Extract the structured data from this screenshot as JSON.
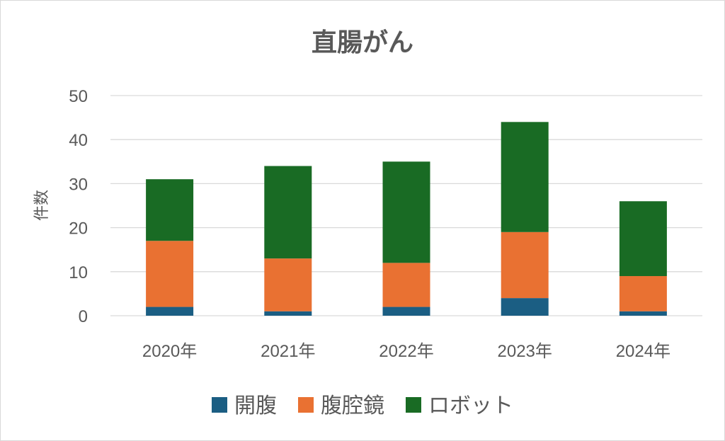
{
  "chart_data": {
    "type": "bar",
    "stacked": true,
    "title": "直腸がん",
    "xlabel": "",
    "ylabel": "件数",
    "ylim": [
      0,
      50
    ],
    "yticks": [
      0,
      10,
      20,
      30,
      40,
      50
    ],
    "grid": true,
    "legend_position": "bottom",
    "categories": [
      "2020年",
      "2021年",
      "2022年",
      "2023年",
      "2024年"
    ],
    "series": [
      {
        "name": "開腹",
        "color": "#1b5e83",
        "values": [
          2,
          1,
          2,
          4,
          1
        ]
      },
      {
        "name": "腹腔鏡",
        "color": "#e97132",
        "values": [
          15,
          12,
          10,
          15,
          8
        ]
      },
      {
        "name": "ロボット",
        "color": "#196b24",
        "values": [
          14,
          21,
          23,
          25,
          17
        ]
      }
    ]
  }
}
